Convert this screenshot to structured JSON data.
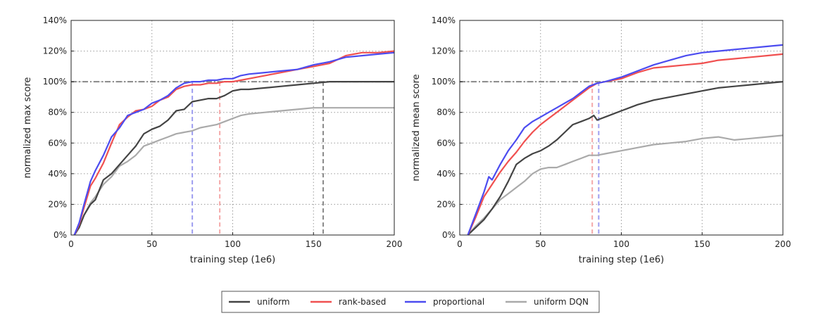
{
  "chart_data": [
    {
      "type": "line",
      "xlabel": "training step (1e6)",
      "ylabel": "normalized max score",
      "xlim": [
        0,
        200
      ],
      "ylim": [
        0,
        140
      ],
      "xticks": [
        0,
        50,
        100,
        150,
        200
      ],
      "yticks": [
        0,
        20,
        40,
        60,
        80,
        100,
        120,
        140
      ],
      "xtick_labels": [
        "0",
        "50",
        "100",
        "150",
        "200"
      ],
      "ytick_labels": [
        "0%",
        "20%",
        "40%",
        "60%",
        "80%",
        "100%",
        "120%",
        "140%"
      ],
      "grid": true,
      "hline": {
        "y": 100,
        "style": "dash-dot",
        "color": "#888888"
      },
      "vlines": [
        {
          "x": 75,
          "series": "proportional",
          "color": "#9d9df0"
        },
        {
          "x": 92,
          "series": "rank-based",
          "color": "#f4a8a8"
        },
        {
          "x": 156,
          "series": "uniform",
          "color": "#8a8a8a"
        }
      ],
      "series": [
        {
          "name": "uniform",
          "color": "#444444",
          "x": [
            2,
            5,
            8,
            12,
            15,
            20,
            25,
            30,
            35,
            40,
            45,
            50,
            55,
            60,
            65,
            70,
            75,
            80,
            85,
            90,
            95,
            100,
            105,
            110,
            120,
            130,
            140,
            150,
            160,
            170,
            180,
            190,
            200
          ],
          "y": [
            0,
            5,
            13,
            20,
            23,
            36,
            40,
            46,
            52,
            58,
            66,
            69,
            71,
            75,
            81,
            82,
            87,
            88,
            89,
            89,
            91,
            94,
            95,
            95,
            96,
            97,
            98,
            99,
            100,
            100,
            100,
            100,
            100
          ]
        },
        {
          "name": "rank-based",
          "color": "#f05050",
          "x": [
            2,
            5,
            8,
            12,
            15,
            20,
            25,
            30,
            35,
            40,
            45,
            50,
            55,
            60,
            65,
            70,
            75,
            80,
            85,
            90,
            95,
            100,
            105,
            110,
            120,
            130,
            140,
            150,
            160,
            170,
            180,
            190,
            200
          ],
          "y": [
            0,
            7,
            18,
            32,
            37,
            47,
            60,
            72,
            77,
            81,
            82,
            84,
            88,
            90,
            95,
            97,
            98,
            98,
            99,
            99,
            100,
            100,
            101,
            102,
            104,
            106,
            108,
            110,
            112,
            117,
            119,
            119,
            120
          ]
        },
        {
          "name": "proportional",
          "color": "#4c4cf0",
          "x": [
            2,
            5,
            8,
            12,
            15,
            20,
            25,
            30,
            35,
            40,
            45,
            50,
            55,
            60,
            65,
            70,
            75,
            80,
            85,
            90,
            95,
            100,
            105,
            110,
            120,
            130,
            140,
            150,
            160,
            170,
            180,
            190,
            200
          ],
          "y": [
            0,
            8,
            20,
            35,
            42,
            52,
            64,
            70,
            78,
            80,
            82,
            86,
            88,
            91,
            96,
            99,
            100,
            100,
            101,
            101,
            102,
            102,
            104,
            105,
            106,
            107,
            108,
            111,
            113,
            116,
            117,
            118,
            119
          ]
        },
        {
          "name": "uniform DQN",
          "color": "#aaaaaa",
          "x": [
            2,
            5,
            8,
            12,
            15,
            20,
            25,
            30,
            35,
            40,
            45,
            50,
            55,
            60,
            65,
            70,
            75,
            80,
            85,
            90,
            95,
            100,
            105,
            110,
            120,
            130,
            140,
            150,
            160,
            170,
            180,
            190,
            200
          ],
          "y": [
            0,
            5,
            13,
            21,
            25,
            33,
            38,
            45,
            48,
            52,
            58,
            60,
            62,
            64,
            66,
            67,
            68,
            70,
            71,
            72,
            74,
            76,
            78,
            79,
            80,
            81,
            82,
            83,
            83,
            83,
            83,
            83,
            83
          ]
        }
      ]
    },
    {
      "type": "line",
      "xlabel": "training step (1e6)",
      "ylabel": "normalized mean score",
      "xlim": [
        0,
        200
      ],
      "ylim": [
        0,
        140
      ],
      "xticks": [
        0,
        50,
        100,
        150,
        200
      ],
      "yticks": [
        0,
        20,
        40,
        60,
        80,
        100,
        120,
        140
      ],
      "xtick_labels": [
        "0",
        "50",
        "100",
        "150",
        "200"
      ],
      "ytick_labels": [
        "0%",
        "20%",
        "40%",
        "60%",
        "80%",
        "100%",
        "120%",
        "140%"
      ],
      "grid": true,
      "hline": {
        "y": 100,
        "style": "dash-dot",
        "color": "#888888"
      },
      "vlines": [
        {
          "x": 82,
          "series": "rank-based",
          "color": "#f4a8a8"
        },
        {
          "x": 86,
          "series": "proportional",
          "color": "#9d9df0"
        }
      ],
      "series": [
        {
          "name": "uniform",
          "color": "#444444",
          "x": [
            5,
            10,
            15,
            20,
            25,
            30,
            35,
            40,
            45,
            50,
            55,
            60,
            65,
            70,
            75,
            80,
            83,
            85,
            90,
            100,
            110,
            120,
            130,
            140,
            150,
            160,
            170,
            180,
            190,
            200
          ],
          "y": [
            0,
            5,
            10,
            17,
            25,
            35,
            46,
            50,
            53,
            55,
            58,
            62,
            67,
            72,
            74,
            76,
            78,
            75,
            77,
            81,
            85,
            88,
            90,
            92,
            94,
            96,
            97,
            98,
            99,
            100
          ]
        },
        {
          "name": "rank-based",
          "color": "#f05050",
          "x": [
            5,
            10,
            15,
            20,
            25,
            30,
            35,
            40,
            45,
            50,
            55,
            60,
            65,
            70,
            75,
            80,
            85,
            90,
            100,
            110,
            120,
            130,
            140,
            150,
            160,
            170,
            180,
            190,
            200
          ],
          "y": [
            0,
            12,
            25,
            33,
            41,
            48,
            54,
            61,
            67,
            72,
            76,
            80,
            84,
            88,
            92,
            96,
            99,
            100,
            102,
            106,
            109,
            110,
            111,
            112,
            114,
            115,
            116,
            117,
            118
          ]
        },
        {
          "name": "proportional",
          "color": "#4c4cf0",
          "x": [
            5,
            10,
            15,
            18,
            20,
            25,
            30,
            35,
            40,
            45,
            50,
            55,
            60,
            65,
            70,
            75,
            80,
            85,
            90,
            100,
            110,
            120,
            130,
            140,
            150,
            160,
            170,
            180,
            190,
            200
          ],
          "y": [
            0,
            14,
            28,
            38,
            36,
            46,
            55,
            62,
            70,
            74,
            77,
            80,
            83,
            86,
            89,
            93,
            97,
            99,
            100,
            103,
            107,
            111,
            114,
            117,
            119,
            120,
            121,
            122,
            123,
            124
          ]
        },
        {
          "name": "uniform DQN",
          "color": "#aaaaaa",
          "x": [
            5,
            10,
            15,
            20,
            25,
            30,
            35,
            40,
            45,
            50,
            55,
            60,
            65,
            70,
            75,
            80,
            85,
            90,
            100,
            110,
            120,
            130,
            140,
            150,
            160,
            170,
            180,
            190,
            200
          ],
          "y": [
            0,
            6,
            11,
            17,
            23,
            27,
            31,
            35,
            40,
            43,
            44,
            44,
            46,
            48,
            50,
            52,
            52,
            53,
            55,
            57,
            59,
            60,
            61,
            63,
            64,
            62,
            63,
            64,
            65
          ]
        }
      ]
    }
  ],
  "legend": [
    {
      "label": "uniform",
      "color": "#444444"
    },
    {
      "label": "rank-based",
      "color": "#f05050"
    },
    {
      "label": "proportional",
      "color": "#4c4cf0"
    },
    {
      "label": "uniform DQN",
      "color": "#aaaaaa"
    }
  ]
}
